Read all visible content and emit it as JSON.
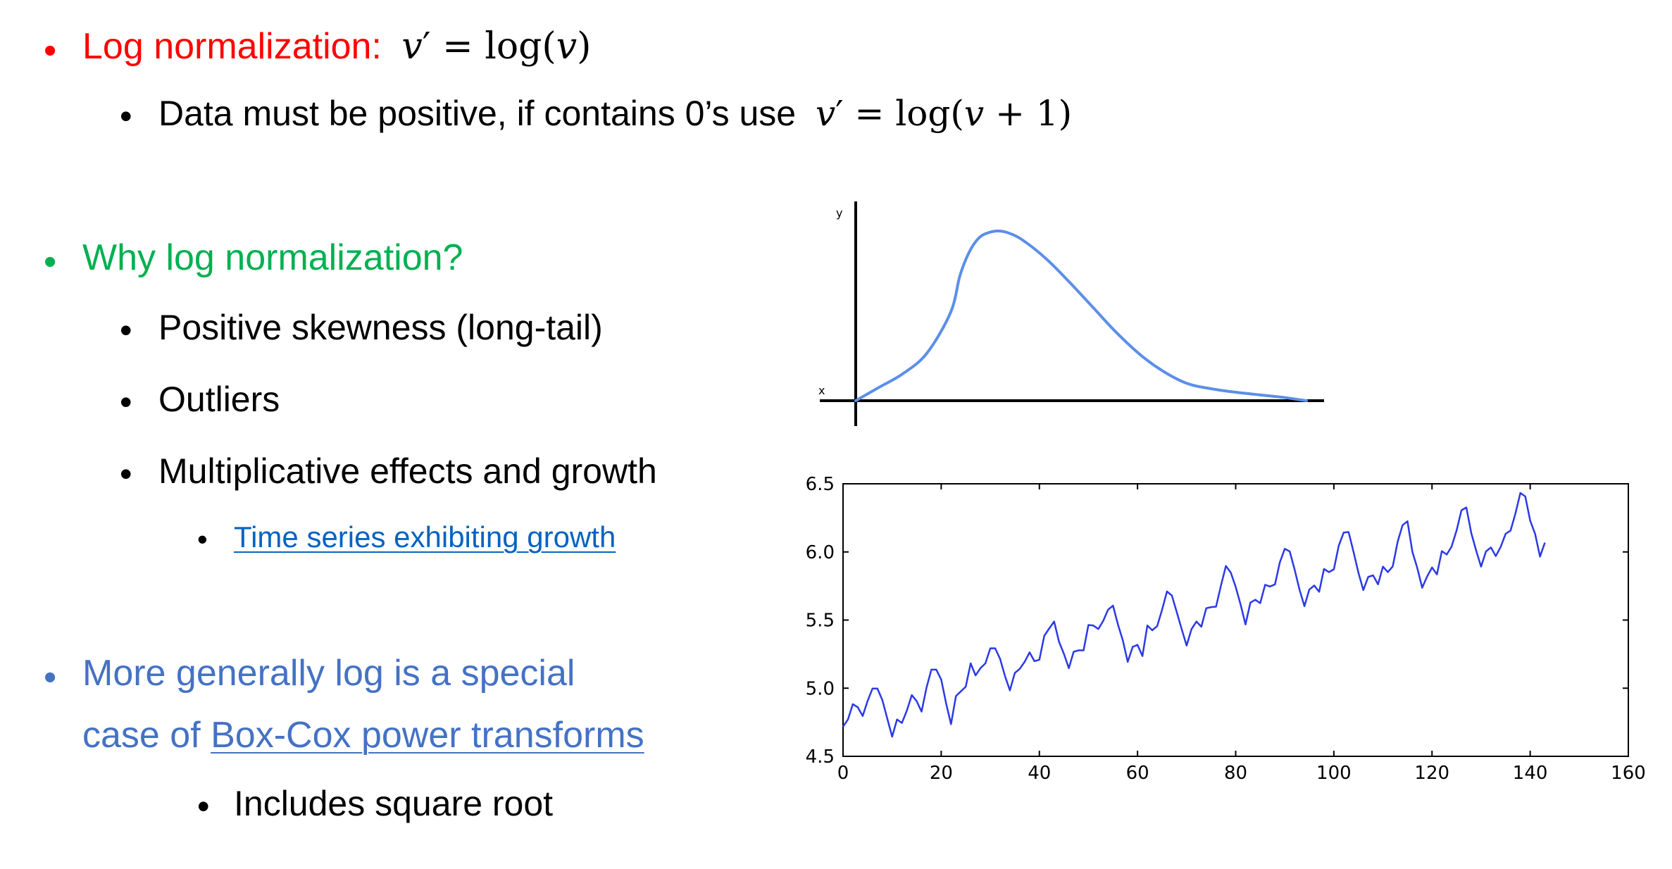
{
  "slide": {
    "b1": {
      "text": "Log normalization:",
      "formula_lhs_var": "v",
      "formula_prime": "′",
      "formula_eq": " = log(",
      "formula_var": "v",
      "formula_close": ")",
      "color": "#ff0000"
    },
    "b1_sub": {
      "text": "Data must be positive, if contains 0’s use",
      "formula_lhs_var": "v",
      "formula_prime": "′",
      "formula_eq": " = log(",
      "formula_var": "v",
      "formula_rest": " + 1)"
    },
    "b2": {
      "text": "Why log normalization?",
      "color": "#00b050",
      "items": [
        "Positive skewness (long-tail)",
        "Outliers",
        "Multiplicative effects and growth"
      ],
      "link": "Time series exhibiting growth"
    },
    "b3": {
      "line1": "More generally log is a special",
      "line2_prefix": "case of ",
      "line2_link": "Box-Cox power transforms",
      "color": "#4472c4",
      "sub": "Includes square root"
    }
  },
  "chart_data": [
    {
      "type": "line",
      "xlabel": "x",
      "ylabel": "y",
      "series": [
        {
          "color": "#5b8fe8",
          "x": [
            0,
            5,
            10,
            15,
            20,
            22,
            24,
            26,
            28,
            30,
            32,
            35,
            40,
            45,
            50,
            55,
            60,
            65,
            70,
            75,
            80,
            85,
            90,
            95
          ],
          "y": [
            0.0,
            0.08,
            0.16,
            0.28,
            0.52,
            0.74,
            0.88,
            0.96,
            0.99,
            1.0,
            0.99,
            0.95,
            0.84,
            0.7,
            0.55,
            0.4,
            0.27,
            0.17,
            0.1,
            0.07,
            0.05,
            0.035,
            0.02,
            0.0
          ]
        }
      ]
    },
    {
      "type": "line",
      "xlim": [
        0,
        160
      ],
      "ylim": [
        4.5,
        6.5
      ],
      "xticks": [
        0,
        20,
        40,
        60,
        80,
        100,
        120,
        140,
        160
      ],
      "yticks": [
        4.5,
        5.0,
        5.5,
        6.0,
        6.5
      ],
      "series": [
        {
          "color": "#2b39e5",
          "x": [
            0,
            1,
            2,
            3,
            4,
            5,
            6,
            7,
            8,
            9,
            10,
            11,
            12,
            13,
            14,
            15,
            16,
            17,
            18,
            19,
            20,
            21,
            22,
            23,
            24,
            25,
            26,
            27,
            28,
            29,
            30,
            31,
            32,
            33,
            34,
            35,
            36,
            37,
            38,
            39,
            40,
            41,
            42,
            43,
            44,
            45,
            46,
            47,
            48,
            49,
            50,
            51,
            52,
            53,
            54,
            55,
            56,
            57,
            58,
            59,
            60,
            61,
            62,
            63,
            64,
            65,
            66,
            67,
            68,
            69,
            70,
            71,
            72,
            73,
            74,
            75,
            76,
            77,
            78,
            79,
            80,
            81,
            82,
            83,
            84,
            85,
            86,
            87,
            88,
            89,
            90,
            91,
            92,
            93,
            94,
            95,
            96,
            97,
            98,
            99,
            100,
            101,
            102,
            103,
            104,
            105,
            106,
            107,
            108,
            109,
            110,
            111,
            112,
            113,
            114,
            115,
            116,
            117,
            118,
            119,
            120,
            121,
            122,
            123,
            124,
            125,
            126,
            127,
            128,
            129,
            130,
            131,
            132,
            133,
            134,
            135,
            136,
            137,
            138,
            139,
            140,
            141,
            142,
            143
          ],
          "y": [
            4.718,
            4.771,
            4.883,
            4.86,
            4.796,
            4.905,
            4.997,
            4.997,
            4.913,
            4.779,
            4.644,
            4.771,
            4.745,
            4.836,
            4.949,
            4.905,
            4.828,
            5.004,
            5.136,
            5.136,
            5.063,
            4.89,
            4.736,
            4.942,
            4.977,
            5.011,
            5.182,
            5.094,
            5.147,
            5.182,
            5.293,
            5.293,
            5.215,
            5.088,
            4.984,
            5.112,
            5.142,
            5.193,
            5.263,
            5.198,
            5.209,
            5.384,
            5.438,
            5.489,
            5.342,
            5.252,
            5.147,
            5.268,
            5.278,
            5.278,
            5.464,
            5.46,
            5.434,
            5.493,
            5.576,
            5.606,
            5.468,
            5.352,
            5.193,
            5.303,
            5.318,
            5.236,
            5.46,
            5.425,
            5.455,
            5.576,
            5.71,
            5.68,
            5.557,
            5.434,
            5.313,
            5.434,
            5.489,
            5.451,
            5.587,
            5.595,
            5.598,
            5.753,
            5.897,
            5.849,
            5.743,
            5.613,
            5.468,
            5.628,
            5.649,
            5.624,
            5.759,
            5.746,
            5.762,
            5.924,
            6.023,
            6.004,
            5.872,
            5.724,
            5.602,
            5.724,
            5.753,
            5.707,
            5.875,
            5.852,
            5.872,
            6.045,
            6.142,
            6.146,
            6.001,
            5.849,
            5.72,
            5.817,
            5.828,
            5.762,
            5.892,
            5.852,
            5.894,
            6.075,
            6.196,
            6.225,
            6.001,
            5.883,
            5.737,
            5.82,
            5.886,
            5.835,
            6.006,
            5.981,
            6.04,
            6.157,
            6.306,
            6.326,
            6.138,
            6.009,
            5.892,
            6.004,
            6.033,
            5.969,
            6.038,
            6.133,
            6.157,
            6.282,
            6.433,
            6.407,
            6.23,
            6.133,
            5.966,
            6.068
          ]
        }
      ]
    }
  ]
}
